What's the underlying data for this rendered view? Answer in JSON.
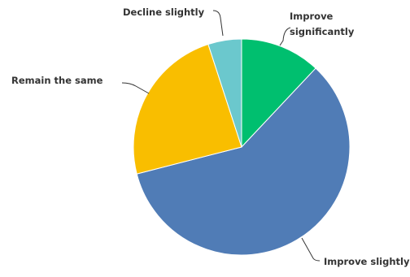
{
  "chart_data": {
    "type": "pie",
    "title": "",
    "start": "12 o'clock",
    "direction": "clockwise",
    "slices": [
      {
        "label": "Improve significantly",
        "label_lines": [
          "Improve",
          "significantly"
        ],
        "value": 12,
        "color": "#00bf6f"
      },
      {
        "label": "Improve slightly",
        "label_lines": [
          "Improve slightly"
        ],
        "value": 59,
        "color": "#507cb6"
      },
      {
        "label": "Remain the same",
        "label_lines": [
          "Remain the same"
        ],
        "value": 24,
        "color": "#f9be00"
      },
      {
        "label": "Decline slightly",
        "label_lines": [
          "Decline slightly"
        ],
        "value": 5,
        "color": "#6bc8cd"
      }
    ]
  }
}
